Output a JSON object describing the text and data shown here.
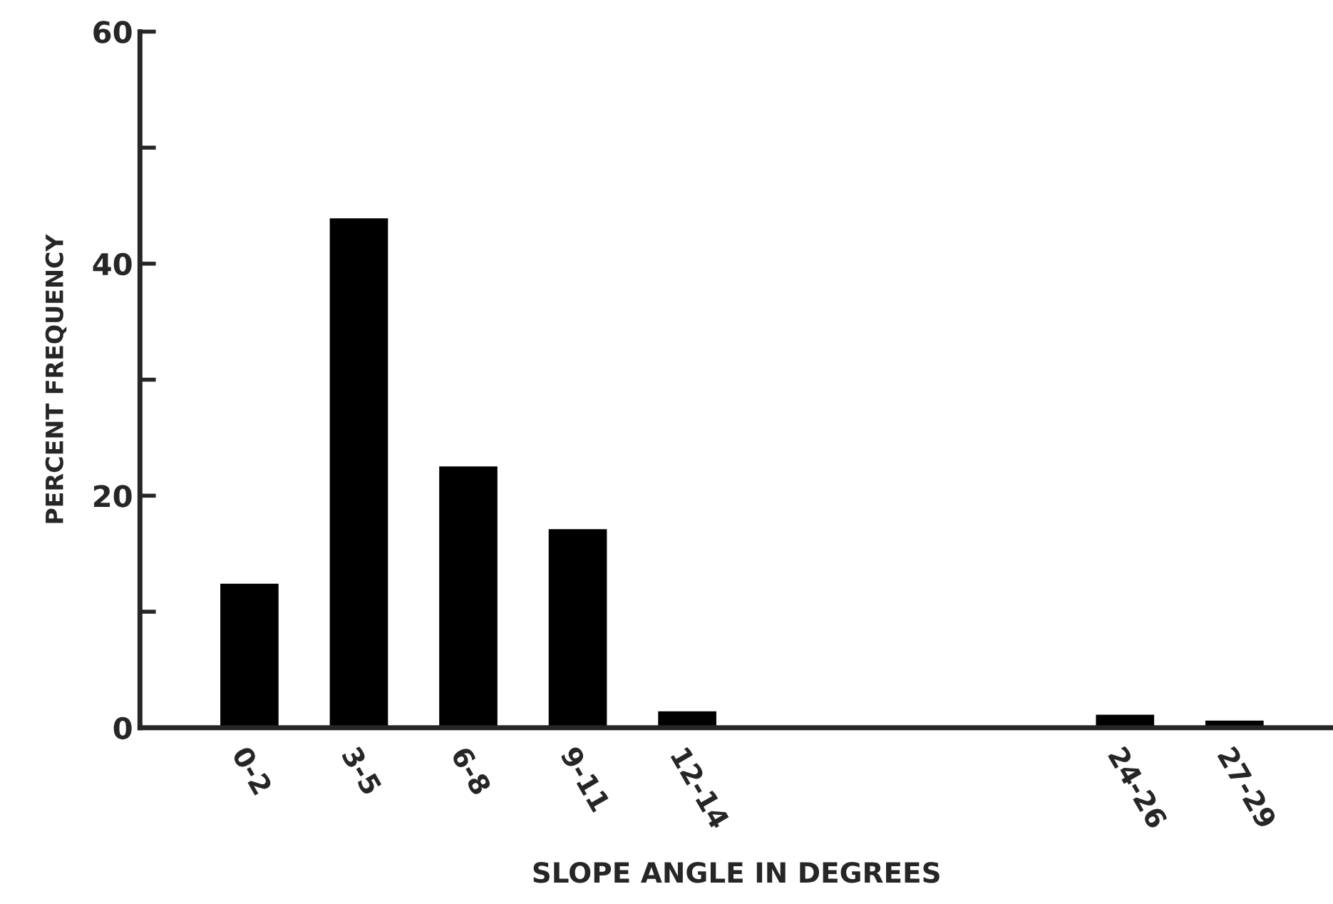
{
  "chart_data": {
    "type": "bar",
    "xlabel": "SLOPE ANGLE IN DEGREES",
    "ylabel": "PERCENT FREQUENCY",
    "categories": [
      "0-2",
      "3-5",
      "6-8",
      "9-11",
      "12-14",
      null,
      null,
      null,
      "24-26",
      "27-29"
    ],
    "values": [
      12.5,
      44,
      22.6,
      17.2,
      1.5,
      null,
      null,
      null,
      1.2,
      0.7
    ],
    "color": "#000000",
    "ylim": [
      0,
      60
    ],
    "yticks": [
      0,
      {
        "value": 10,
        "label": null
      },
      20,
      {
        "value": 30,
        "label": null
      },
      40,
      {
        "value": 50,
        "label": null
      },
      60
    ],
    "grid": false
  }
}
